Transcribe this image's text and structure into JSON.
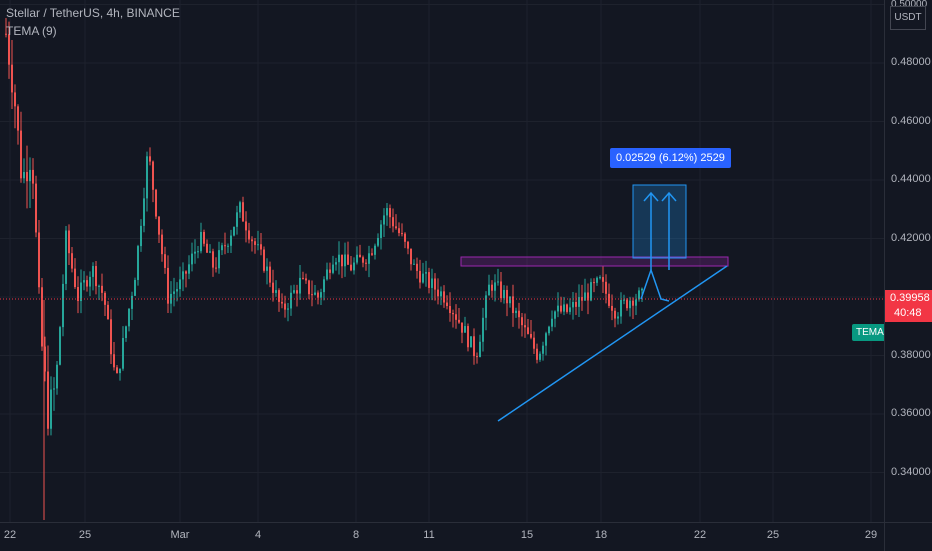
{
  "header": {
    "symbol_line": "Stellar / TetherUS, 4h, BINANCE",
    "indicator": "TEMA (9)"
  },
  "price_axis": {
    "currency": "USDT",
    "top_label": "0.50000",
    "labels": [
      "0.48000",
      "0.46000",
      "0.44000",
      "0.42000",
      "0.38000",
      "0.36000",
      "0.34000"
    ],
    "current_price": "0.39958",
    "countdown": "40:48",
    "indicator_tag": "TEMA"
  },
  "time_axis": {
    "labels": [
      "22",
      "25",
      "Mar",
      "4",
      "8",
      "11",
      "15",
      "18",
      "22",
      "25",
      "29"
    ]
  },
  "measure": {
    "label": "0.02529 (6.12%) 2529"
  },
  "colors": {
    "background": "#131722",
    "up": "#26a69a",
    "down": "#ef5350",
    "price_line": "#f23645",
    "trendline": "#2196f3",
    "resistance_box": "#9c27b0",
    "tema_tag": "#089981"
  }
}
